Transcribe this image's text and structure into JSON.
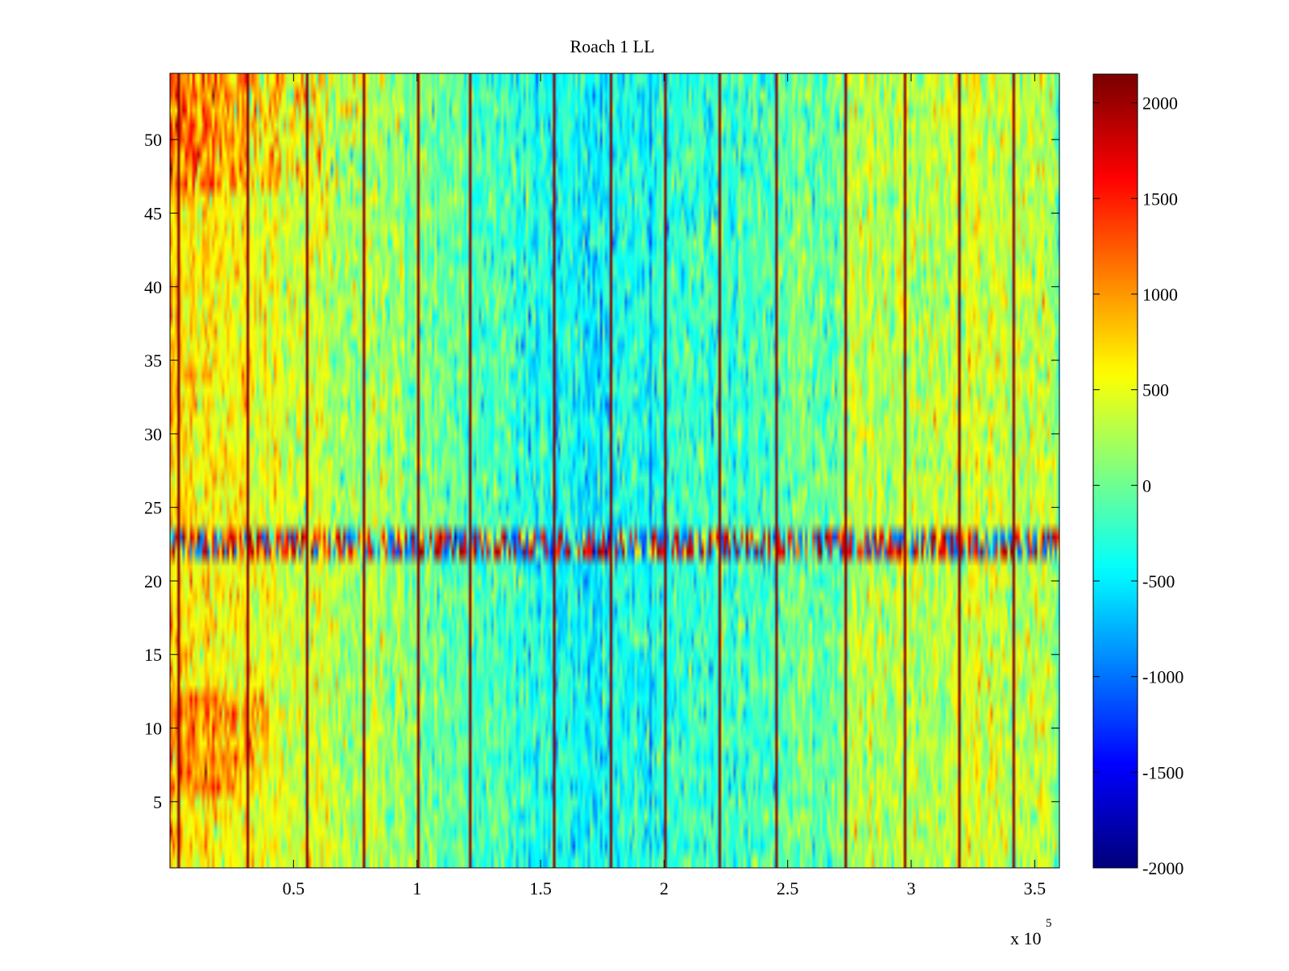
{
  "chart_data": {
    "type": "heatmap",
    "title": "Roach 1 LL",
    "xlabel": "",
    "ylabel": "",
    "x_exponent_label": "x 10",
    "x_exponent_power": "5",
    "xlim": [
      0,
      3.6
    ],
    "ylim": [
      0.5,
      54.5
    ],
    "x_ticks": [
      0.5,
      1,
      1.5,
      2,
      2.5,
      3,
      3.5
    ],
    "x_tick_labels": [
      "0.5",
      "1",
      "1.5",
      "2",
      "2.5",
      "3",
      "3.5"
    ],
    "y_ticks": [
      5,
      10,
      15,
      20,
      25,
      30,
      35,
      40,
      45,
      50
    ],
    "y_tick_labels": [
      "5",
      "10",
      "15",
      "20",
      "25",
      "30",
      "35",
      "40",
      "45",
      "50"
    ],
    "rows": 54,
    "columns": 360,
    "colormap": "jet",
    "clim": [
      -2000,
      2150
    ],
    "colorbar": {
      "ticks": [
        2000,
        1500,
        1000,
        500,
        0,
        -500,
        -1000,
        -1500,
        -2000
      ],
      "tick_labels": [
        "2000",
        "1500",
        "1000",
        "500",
        "0",
        "-500",
        "-1000",
        "-1500",
        "-2000"
      ]
    },
    "column_profile": {
      "x": [
        0.0,
        0.3,
        0.55,
        0.78,
        1.0,
        1.25,
        1.5,
        1.7,
        1.9,
        2.1,
        2.4,
        2.7,
        2.75,
        3.0,
        3.3,
        3.6
      ],
      "mean": [
        700,
        550,
        380,
        250,
        100,
        -120,
        -350,
        -450,
        -350,
        -250,
        -150,
        0,
        300,
        300,
        380,
        330
      ]
    },
    "row_band": {
      "rows": [
        22,
        23
      ],
      "description_values": "alternating high and low values, approximately -1200 to 2100"
    },
    "upper_rows_boost": {
      "rows": [
        47,
        54
      ],
      "x_range": [
        0,
        0.8
      ],
      "value": 500
    },
    "lower_rows_boost": {
      "rows": [
        6,
        12
      ],
      "x_range": [
        0,
        0.4
      ],
      "value": 350
    },
    "vertical_lines": {
      "x": [
        0.035,
        0.31,
        0.55,
        0.78,
        1.0,
        1.22,
        1.55,
        1.78,
        2.0,
        2.22,
        2.45,
        2.73,
        2.97,
        3.19,
        3.41
      ],
      "value": 2100
    }
  }
}
